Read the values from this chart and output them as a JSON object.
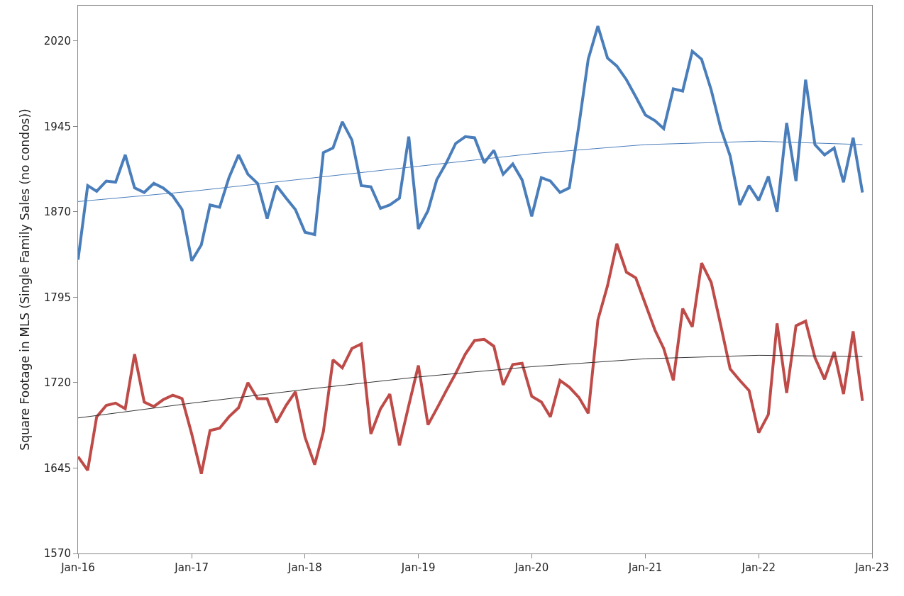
{
  "chart_data": {
    "type": "line",
    "ylabel": "Square Footage in MLS (Single Family Sales (no condos))",
    "x": [
      "2016-01",
      "2016-02",
      "2016-03",
      "2016-04",
      "2016-05",
      "2016-06",
      "2016-07",
      "2016-08",
      "2016-09",
      "2016-10",
      "2016-11",
      "2016-12",
      "2017-01",
      "2017-02",
      "2017-03",
      "2017-04",
      "2017-05",
      "2017-06",
      "2017-07",
      "2017-08",
      "2017-09",
      "2017-10",
      "2017-11",
      "2017-12",
      "2018-01",
      "2018-02",
      "2018-03",
      "2018-04",
      "2018-05",
      "2018-06",
      "2018-07",
      "2018-08",
      "2018-09",
      "2018-10",
      "2018-11",
      "2018-12",
      "2019-01",
      "2019-02",
      "2019-03",
      "2019-04",
      "2019-05",
      "2019-06",
      "2019-07",
      "2019-08",
      "2019-09",
      "2019-10",
      "2019-11",
      "2019-12",
      "2020-01",
      "2020-02",
      "2020-03",
      "2020-04",
      "2020-05",
      "2020-06",
      "2020-07",
      "2020-08",
      "2020-09",
      "2020-10",
      "2020-11",
      "2020-12",
      "2021-01",
      "2021-02",
      "2021-03",
      "2021-04",
      "2021-05",
      "2021-06",
      "2021-07",
      "2021-08",
      "2021-09",
      "2021-10",
      "2021-11",
      "2021-12",
      "2022-01",
      "2022-02",
      "2022-03",
      "2022-04",
      "2022-05",
      "2022-06",
      "2022-07",
      "2022-08",
      "2022-09",
      "2022-10",
      "2022-11",
      "2022-12"
    ],
    "series": [
      {
        "color": "#4a7ebb",
        "values": [
          1828,
          1893,
          1888,
          1897,
          1896,
          1920,
          1891,
          1887,
          1895,
          1891,
          1884,
          1872,
          1827,
          1841,
          1876,
          1874,
          1900,
          1920,
          1903,
          1895,
          1864,
          1893,
          1882,
          1872,
          1852,
          1850,
          1922,
          1926,
          1949,
          1933,
          1893,
          1892,
          1873,
          1876,
          1882,
          1936,
          1855,
          1871,
          1898,
          1913,
          1930,
          1936,
          1935,
          1913,
          1924,
          1903,
          1912,
          1898,
          1866,
          1900,
          1897,
          1887,
          1891,
          1946,
          2004,
          2033,
          2005,
          1998,
          1986,
          1971,
          1955,
          1950,
          1943,
          1978,
          1976,
          2011,
          2004,
          1977,
          1943,
          1919,
          1876,
          1893,
          1880,
          1901,
          1870,
          1948,
          1897,
          1986,
          1929,
          1920,
          1926,
          1896,
          1935,
          1887
        ]
      },
      {
        "color": "#be4b48",
        "values": [
          1655,
          1643,
          1690,
          1700,
          1702,
          1697,
          1745,
          1703,
          1699,
          1705,
          1709,
          1706,
          1675,
          1640,
          1678,
          1680,
          1690,
          1698,
          1720,
          1706,
          1706,
          1685,
          1700,
          1712,
          1672,
          1648,
          1677,
          1740,
          1733,
          1750,
          1754,
          1675,
          1697,
          1710,
          1665,
          1700,
          1735,
          1683,
          1697,
          1713,
          1728,
          1745,
          1757,
          1758,
          1752,
          1718,
          1736,
          1737,
          1708,
          1703,
          1690,
          1722,
          1716,
          1707,
          1693,
          1775,
          1805,
          1842,
          1817,
          1812,
          1789,
          1766,
          1750,
          1722,
          1785,
          1769,
          1825,
          1808,
          1770,
          1732,
          1722,
          1713,
          1676,
          1692,
          1772,
          1711,
          1770,
          1774,
          1742,
          1723,
          1747,
          1710,
          1765,
          1704
        ]
      },
      {
        "color": "#4a7ebb",
        "x": [
          "2016-01",
          "2017-01",
          "2018-01",
          "2019-01",
          "2020-01",
          "2021-01",
          "2022-01",
          "2022-12"
        ],
        "values": [
          1879,
          1888,
          1899,
          1910,
          1921,
          1929,
          1932,
          1929
        ]
      },
      {
        "color": "#333333",
        "x": [
          "2016-01",
          "2017-01",
          "2018-01",
          "2019-01",
          "2020-01",
          "2021-01",
          "2022-01",
          "2022-12"
        ],
        "values": [
          1689,
          1702,
          1714,
          1725,
          1734,
          1741,
          1744,
          1743
        ]
      }
    ],
    "xlim": [
      "2016-01",
      "2023-01"
    ],
    "xticks": [
      {
        "value": "2016-01",
        "label": "Jan-16"
      },
      {
        "value": "2017-01",
        "label": "Jan-17"
      },
      {
        "value": "2018-01",
        "label": "Jan-18"
      },
      {
        "value": "2019-01",
        "label": "Jan-19"
      },
      {
        "value": "2020-01",
        "label": "Jan-20"
      },
      {
        "value": "2021-01",
        "label": "Jan-21"
      },
      {
        "value": "2022-01",
        "label": "Jan-22"
      },
      {
        "value": "2023-01",
        "label": "Jan-23"
      }
    ],
    "ylim": [
      1570,
      2051
    ],
    "yticks": [
      1570,
      1645,
      1720,
      1795,
      1870,
      1945,
      2020
    ],
    "marker": "none",
    "line_style": "solid"
  }
}
